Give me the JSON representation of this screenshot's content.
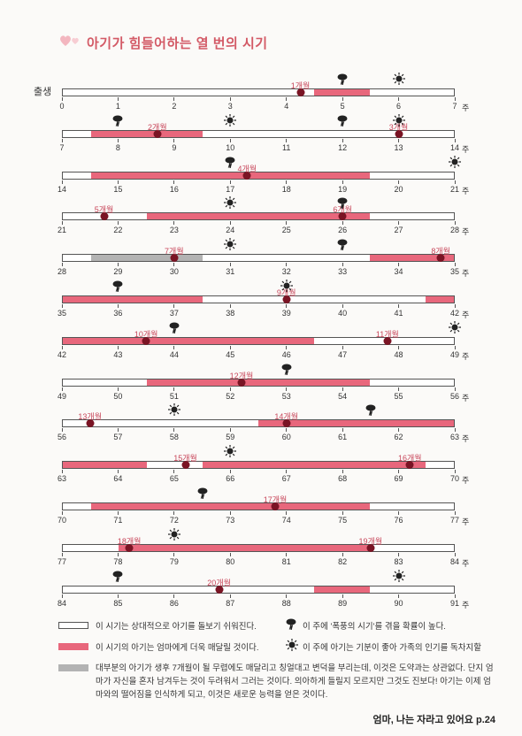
{
  "title": "아기가 힘들어하는 열 번의 시기",
  "start_label": "출생",
  "unit": "주",
  "colors": {
    "calm": "#ffffff",
    "fussy": "#e8677c",
    "clingy": "#b3b3b3",
    "leap_dot": "#7a1424",
    "label": "#c8465a"
  },
  "rows": [
    {
      "start": 0,
      "segs": [
        {
          "a": 4.5,
          "b": 5.5,
          "t": "pink"
        }
      ],
      "leaps": [
        {
          "w": 4.25,
          "label": "1개월"
        }
      ],
      "storms": [
        5
      ],
      "suns": [
        6
      ]
    },
    {
      "start": 7,
      "segs": [
        {
          "a": 7.5,
          "b": 9.5,
          "t": "pink"
        }
      ],
      "leaps": [
        {
          "w": 8.7,
          "label": "2개월"
        },
        {
          "w": 13,
          "label": "3개월"
        }
      ],
      "storms": [
        8,
        12
      ],
      "suns": [
        10,
        13
      ]
    },
    {
      "start": 14,
      "segs": [
        {
          "a": 14.5,
          "b": 19.5,
          "t": "pink"
        }
      ],
      "leaps": [
        {
          "w": 17.3,
          "label": "4개월"
        }
      ],
      "storms": [
        17
      ],
      "suns": [
        21
      ]
    },
    {
      "start": 21,
      "segs": [
        {
          "a": 22.5,
          "b": 26.5,
          "t": "pink"
        }
      ],
      "leaps": [
        {
          "w": 21.75,
          "label": "5개월"
        },
        {
          "w": 26,
          "label": "6개월"
        }
      ],
      "storms": [
        26
      ],
      "suns": [
        24
      ]
    },
    {
      "start": 28,
      "segs": [
        {
          "a": 28.5,
          "b": 30.5,
          "t": "gray"
        },
        {
          "a": 33.5,
          "b": 35,
          "t": "pink"
        }
      ],
      "leaps": [
        {
          "w": 30,
          "label": "7개월"
        },
        {
          "w": 34.75,
          "label": "8개월"
        }
      ],
      "storms": [
        33
      ],
      "suns": [
        31
      ]
    },
    {
      "start": 35,
      "segs": [
        {
          "a": 35,
          "b": 37.5,
          "t": "pink"
        },
        {
          "a": 41.5,
          "b": 42,
          "t": "pink"
        }
      ],
      "leaps": [
        {
          "w": 39,
          "label": "9개월"
        }
      ],
      "storms": [
        36
      ],
      "suns": [
        39
      ]
    },
    {
      "start": 42,
      "segs": [
        {
          "a": 42,
          "b": 46.5,
          "t": "pink"
        }
      ],
      "leaps": [
        {
          "w": 43.5,
          "label": "10개월"
        },
        {
          "w": 47.8,
          "label": "11개월"
        }
      ],
      "storms": [
        44
      ],
      "suns": [
        49
      ]
    },
    {
      "start": 49,
      "segs": [
        {
          "a": 50.5,
          "b": 54.5,
          "t": "pink"
        }
      ],
      "leaps": [
        {
          "w": 52.2,
          "label": "12개월"
        }
      ],
      "storms": [
        53
      ],
      "suns": []
    },
    {
      "start": 56,
      "segs": [
        {
          "a": 59.5,
          "b": 63,
          "t": "pink"
        }
      ],
      "leaps": [
        {
          "w": 56.5,
          "label": "13개월"
        },
        {
          "w": 60,
          "label": "14개월"
        }
      ],
      "storms": [
        61.5
      ],
      "suns": [
        58
      ]
    },
    {
      "start": 63,
      "segs": [
        {
          "a": 63,
          "b": 64.5,
          "t": "pink"
        },
        {
          "a": 65.5,
          "b": 69.5,
          "t": "pink"
        }
      ],
      "leaps": [
        {
          "w": 65.2,
          "label": "15개월"
        },
        {
          "w": 69.2,
          "label": "16개월"
        }
      ],
      "storms": [],
      "suns": [
        66
      ]
    },
    {
      "start": 70,
      "segs": [
        {
          "a": 70.5,
          "b": 75.5,
          "t": "pink"
        }
      ],
      "leaps": [
        {
          "w": 73.8,
          "label": "17개월"
        }
      ],
      "storms": [
        72.5
      ],
      "suns": []
    },
    {
      "start": 77,
      "segs": [
        {
          "a": 78,
          "b": 82.5,
          "t": "pink"
        }
      ],
      "leaps": [
        {
          "w": 78.2,
          "label": "18개월"
        },
        {
          "w": 82.5,
          "label": "19개월"
        }
      ],
      "storms": [],
      "suns": [
        79
      ]
    },
    {
      "start": 84,
      "segs": [
        {
          "a": 88.5,
          "b": 89.5,
          "t": "pink"
        }
      ],
      "leaps": [
        {
          "w": 86.8,
          "label": "20개월"
        }
      ],
      "storms": [
        85
      ],
      "suns": [
        90
      ]
    }
  ],
  "legend": {
    "calm": "이 시기는 상대적으로 아기를 돌보기 쉬워진다.",
    "fussy": "이 시기의 아기는 엄마에게 더욱 매달릴 것이다.",
    "storm": "이 주에 '폭풍의 시기'를 겪을 확률이 높다.",
    "sun": "이 주에 아기는 기분이 좋아 가족의 인기를 독차지할",
    "note": "대부분의 아기가 생후 7개월이 될 무렵에도 매달리고 칭얼대고 변덕을 부리는데, 이것은 도약과는 상관없다. 단지 엄마가 자신을 혼자 남겨두는 것이 두려워서 그러는 것이다. 의아하게 들릴지 모르지만 그것도 진보다! 아기는 이제 엄마와의 떨어짐을 인식하게 되고, 이것은 새로운 능력을 얻은 것이다."
  },
  "source": "엄마, 나는 자라고 있어요 p.24"
}
